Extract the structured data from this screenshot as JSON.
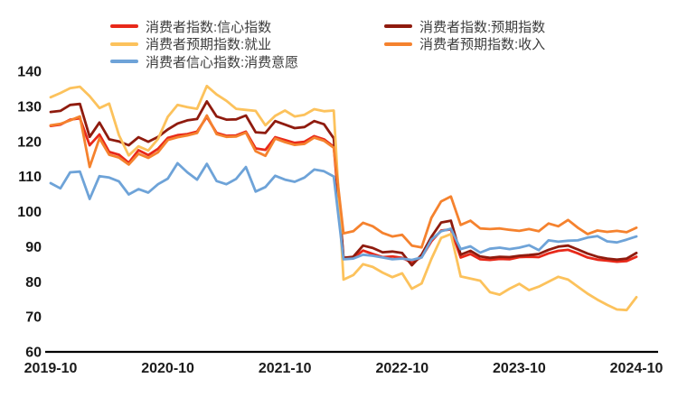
{
  "chart_data": {
    "type": "line",
    "title": "",
    "x_range": [
      "2019-10",
      "2024-10"
    ],
    "x_interval": "monthly",
    "x_tick_labels": [
      "2019-10",
      "2020-10",
      "2021-10",
      "2022-10",
      "2023-10",
      "2024-10"
    ],
    "x_tick_month_index": [
      0,
      12,
      24,
      36,
      48,
      60
    ],
    "y_ticks": [
      140,
      130,
      120,
      110,
      100,
      90,
      80,
      70,
      60
    ],
    "ylim": [
      60,
      140
    ],
    "grid": false,
    "legend_position": "top",
    "background_color": "#ffffff",
    "axis_color": "#000000",
    "series": [
      {
        "name": "消费者指数:信心指数",
        "color": "#e8291a",
        "values": [
          124.4,
          124.8,
          126.2,
          126.6,
          118.9,
          122.0,
          117.0,
          116.2,
          113.9,
          117.5,
          116.1,
          117.9,
          121.0,
          121.8,
          122.1,
          122.8,
          127.0,
          122.4,
          121.6,
          121.7,
          122.8,
          118.0,
          117.6,
          121.2,
          120.4,
          119.6,
          119.9,
          121.5,
          120.6,
          118.5,
          86.7,
          86.8,
          88.9,
          87.9,
          87.0,
          87.2,
          86.8,
          85.5,
          87.0,
          91.5,
          94.6,
          94.9,
          86.9,
          87.9,
          86.4,
          86.2,
          86.5,
          86.4,
          87.0,
          87.1,
          87.0,
          88.1,
          88.8,
          89.1,
          88.1,
          86.9,
          86.3,
          86.0,
          85.7,
          85.9,
          87.1
        ]
      },
      {
        "name": "消费者指数:预期指数",
        "color": "#8f1b0e",
        "values": [
          128.4,
          128.7,
          130.4,
          130.7,
          121.3,
          125.4,
          120.6,
          120.0,
          118.9,
          121.2,
          119.9,
          121.3,
          123.4,
          125.1,
          126.0,
          126.4,
          131.4,
          127.1,
          126.2,
          126.3,
          127.4,
          122.6,
          122.4,
          125.8,
          124.8,
          123.8,
          124.1,
          125.8,
          124.9,
          120.9,
          86.8,
          87.1,
          90.3,
          89.6,
          88.4,
          88.6,
          88.2,
          84.7,
          87.7,
          92.8,
          96.9,
          97.4,
          87.7,
          88.8,
          87.2,
          86.8,
          87.1,
          87.0,
          87.4,
          87.6,
          87.9,
          89.1,
          90.0,
          90.3,
          89.2,
          88.0,
          87.1,
          86.6,
          86.3,
          86.6,
          88.2
        ]
      },
      {
        "name": "消费者预期指数:就业",
        "color": "#fcc25c",
        "values": [
          132.6,
          133.8,
          135.2,
          135.6,
          132.9,
          129.5,
          130.8,
          121.8,
          116.0,
          118.6,
          117.4,
          120.7,
          127.0,
          130.4,
          129.8,
          129.3,
          135.8,
          133.4,
          131.6,
          129.3,
          129.0,
          128.7,
          124.6,
          127.3,
          128.8,
          127.1,
          127.6,
          129.2,
          128.6,
          128.8,
          80.6,
          81.9,
          85.0,
          84.2,
          82.6,
          81.3,
          82.4,
          78.0,
          79.5,
          86.5,
          92.5,
          93.6,
          81.5,
          80.9,
          80.3,
          77.0,
          76.3,
          78.0,
          79.4,
          77.6,
          78.6,
          80.0,
          81.4,
          80.6,
          78.6,
          76.6,
          74.9,
          73.4,
          72.1,
          71.9,
          75.6
        ]
      },
      {
        "name": "消费者预期指数:收入",
        "color": "#f5822e",
        "values": [
          124.6,
          125.0,
          126.0,
          127.1,
          112.7,
          120.9,
          116.2,
          115.4,
          113.4,
          116.5,
          115.3,
          116.9,
          120.4,
          121.2,
          121.7,
          122.4,
          127.4,
          122.1,
          121.3,
          121.4,
          122.5,
          117.2,
          115.9,
          120.8,
          119.8,
          119.0,
          119.3,
          121.1,
          120.2,
          118.2,
          93.8,
          94.4,
          96.8,
          95.8,
          93.9,
          92.9,
          93.4,
          90.3,
          89.8,
          98.2,
          102.9,
          104.3,
          96.2,
          97.4,
          95.2,
          95.0,
          95.2,
          94.8,
          94.5,
          95.0,
          94.4,
          96.6,
          95.8,
          97.6,
          95.4,
          93.6,
          94.6,
          94.2,
          94.5,
          94.1,
          95.4
        ]
      },
      {
        "name": "消费者信心指数:消费意愿",
        "color": "#6ea3d8",
        "values": [
          108.1,
          106.6,
          111.2,
          111.4,
          103.6,
          110.1,
          109.7,
          108.6,
          104.9,
          106.4,
          105.4,
          107.8,
          109.4,
          113.8,
          111.2,
          109.1,
          113.6,
          108.7,
          107.8,
          109.3,
          112.7,
          105.7,
          107.0,
          110.2,
          109.1,
          108.5,
          109.7,
          112.0,
          111.5,
          110.0,
          86.4,
          86.6,
          87.7,
          87.4,
          86.9,
          86.4,
          86.6,
          86.2,
          86.9,
          92.0,
          94.4,
          95.1,
          89.3,
          90.1,
          88.3,
          89.4,
          89.7,
          89.3,
          89.7,
          90.4,
          89.0,
          91.8,
          91.4,
          91.7,
          91.8,
          92.6,
          93.0,
          91.5,
          91.2,
          92.0,
          92.9
        ]
      }
    ]
  },
  "legend": {
    "items": [
      {
        "label": "消费者指数:信心指数",
        "color": "#e8291a",
        "col": 0,
        "row": 0
      },
      {
        "label": "消费者指数:预期指数",
        "color": "#8f1b0e",
        "col": 1,
        "row": 0
      },
      {
        "label": "消费者预期指数:就业",
        "color": "#fcc25c",
        "col": 0,
        "row": 1
      },
      {
        "label": "消费者预期指数:收入",
        "color": "#f5822e",
        "col": 1,
        "row": 1
      },
      {
        "label": "消费者信心指数:消费意愿",
        "color": "#6ea3d8",
        "col": 0,
        "row": 2
      }
    ]
  }
}
